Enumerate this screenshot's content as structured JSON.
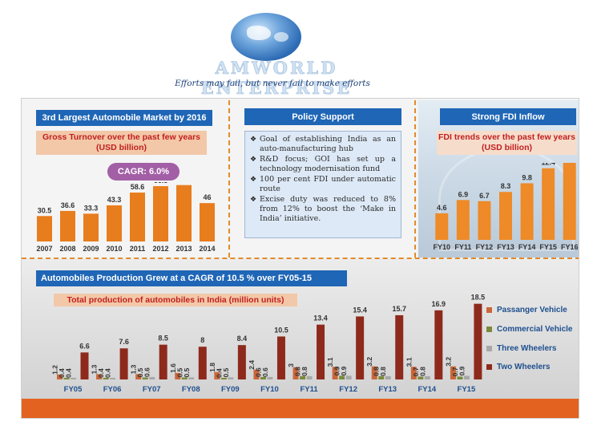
{
  "header": {
    "brand": "AMWORLD ENTERPRISE",
    "tagline": "Efforts may fail, but never fail to make efforts"
  },
  "market_section": {
    "title": "3rd Largest Automobile Market by 2016",
    "subtitle_line1": "Gross Turnover over the past few years",
    "subtitle_line2": "(USD billion)",
    "cagr": "CAGR: 6.0%"
  },
  "policy_section": {
    "title": "Policy Support",
    "items": [
      "Goal of establishing India as an auto-manufacturing hub",
      "R&D focus; GOI has set up a technology modernisation fund",
      "100 per cent FDI under automatic route",
      "Excise duty was reduced to 8% from 12% to boost the ‘Make in India’ initiative."
    ]
  },
  "fdi_section": {
    "title": "Strong FDI Inflow",
    "subtitle_line1": "FDI trends over the past few years",
    "subtitle_line2": "(USD billion)"
  },
  "production_section": {
    "title": "Automobiles Production Grew at a CAGR of 10.5 % over FY05-15",
    "subtitle": "Total production of automobiles in India (million units)"
  },
  "colors": {
    "accent_orange": "#e87d1e",
    "header_blue": "#1f66b6",
    "bottom_strip": "#e3621f",
    "passenger": "#c9673a",
    "commercial": "#7b8a3c",
    "three_wheelers": "#a8a8a8",
    "two_wheelers": "#8e2a1c"
  },
  "chart_data": [
    {
      "type": "bar",
      "categories": [
        "2007",
        "2008",
        "2009",
        "2010",
        "2011",
        "2012",
        "2013",
        "2014"
      ],
      "values": [
        30.5,
        36.6,
        33.3,
        43.3,
        58.6,
        66.3,
        67.6,
        46
      ],
      "ylim": [
        0,
        75
      ]
    },
    {
      "type": "bar",
      "categories": [
        "FY10",
        "FY11",
        "FY12",
        "FY13",
        "FY14",
        "FY15",
        "FY16"
      ],
      "values": [
        4.6,
        6.9,
        6.7,
        8.3,
        9.8,
        12.4,
        13.4
      ],
      "ylim": [
        0,
        15
      ]
    },
    {
      "type": "bar",
      "categories": [
        "FY05",
        "FY06",
        "FY07",
        "FY08",
        "FY09",
        "FY10",
        "FY11",
        "FY12",
        "FY13",
        "FY14",
        "FY15"
      ],
      "series": [
        {
          "name": "Passanger Vehicle",
          "values": [
            1.2,
            1.3,
            1.3,
            1.6,
            1.8,
            2.4,
            3.0,
            3.1,
            3.2,
            3.1,
            3.2
          ]
        },
        {
          "name": "Commercial Vehicle",
          "values": [
            0.4,
            0.4,
            0.5,
            0.5,
            0.4,
            0.6,
            0.8,
            0.9,
            0.8,
            0.7,
            0.7
          ]
        },
        {
          "name": "Three Wheelers",
          "values": [
            0.4,
            0.4,
            0.6,
            0.5,
            0.5,
            0.6,
            0.8,
            0.9,
            0.8,
            0.8,
            0.9
          ]
        },
        {
          "name": "Two Wheelers",
          "values": [
            6.6,
            7.6,
            8.5,
            8,
            8.4,
            10.5,
            13.4,
            15.4,
            15.7,
            16.9,
            18.5
          ]
        }
      ],
      "ylim": [
        0,
        20
      ]
    }
  ]
}
